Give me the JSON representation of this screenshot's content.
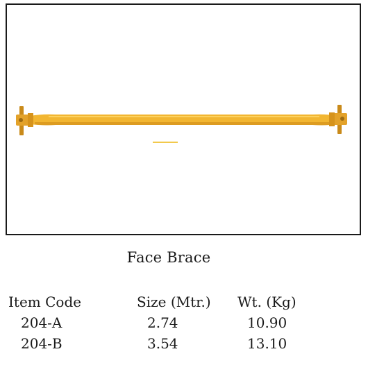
{
  "product": {
    "caption": "Face Brace",
    "image_subject": "face-brace-rod",
    "colors": {
      "rod": "#f2b631",
      "rod_shadow": "#d6931c",
      "fitting": "#c98a1a",
      "frame": "#1a1a1a"
    }
  },
  "spec_table": {
    "headers": [
      "Item Code",
      "Size (Mtr.)",
      "Wt. (Kg)"
    ],
    "rows": [
      {
        "item_code": "204-A",
        "size": "2.74",
        "weight": "10.90"
      },
      {
        "item_code": "204-B",
        "size": "3.54",
        "weight": "13.10"
      }
    ]
  }
}
